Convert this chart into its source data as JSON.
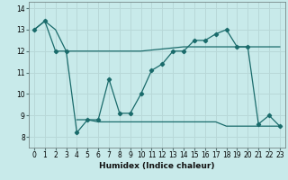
{
  "xlabel": "Humidex (Indice chaleur)",
  "background_color": "#c8eaea",
  "grid_color": "#b8d8d8",
  "line_color": "#1a6b6b",
  "line1_x": [
    0,
    1,
    2,
    3,
    4,
    5,
    6,
    7,
    8,
    9,
    10,
    11,
    12,
    13,
    14,
    15,
    16,
    17,
    18,
    19,
    20,
    21,
    22,
    23
  ],
  "line1_y": [
    13.0,
    13.4,
    13.0,
    12.0,
    12.0,
    12.0,
    12.0,
    12.0,
    12.0,
    12.0,
    12.0,
    12.05,
    12.1,
    12.15,
    12.2,
    12.2,
    12.2,
    12.2,
    12.2,
    12.2,
    12.2,
    12.2,
    12.2,
    12.2
  ],
  "line2_x": [
    0,
    1,
    2,
    3,
    4,
    5,
    6,
    7,
    8,
    9,
    10,
    11,
    12,
    13,
    14,
    15,
    16,
    17,
    18,
    19,
    20,
    21,
    22,
    23
  ],
  "line2_y": [
    13.0,
    13.4,
    12.0,
    12.0,
    8.2,
    8.8,
    8.8,
    10.7,
    9.1,
    9.1,
    10.0,
    11.1,
    11.4,
    12.0,
    12.0,
    12.5,
    12.5,
    12.8,
    13.0,
    12.2,
    12.2,
    8.6,
    9.0,
    8.5
  ],
  "line3_x": [
    4,
    5,
    6,
    7,
    8,
    9,
    10,
    11,
    12,
    13,
    14,
    15,
    16,
    17,
    18,
    19,
    20,
    21,
    22,
    23
  ],
  "line3_y": [
    8.8,
    8.8,
    8.7,
    8.7,
    8.7,
    8.7,
    8.7,
    8.7,
    8.7,
    8.7,
    8.7,
    8.7,
    8.7,
    8.7,
    8.5,
    8.5,
    8.5,
    8.5,
    8.5,
    8.5
  ],
  "ylim": [
    7.5,
    14.3
  ],
  "xlim": [
    -0.5,
    23.5
  ],
  "yticks": [
    8,
    9,
    10,
    11,
    12,
    13,
    14
  ],
  "xticks": [
    0,
    1,
    2,
    3,
    4,
    5,
    6,
    7,
    8,
    9,
    10,
    11,
    12,
    13,
    14,
    15,
    16,
    17,
    18,
    19,
    20,
    21,
    22,
    23
  ],
  "tick_fontsize": 5.5,
  "xlabel_fontsize": 6.5
}
